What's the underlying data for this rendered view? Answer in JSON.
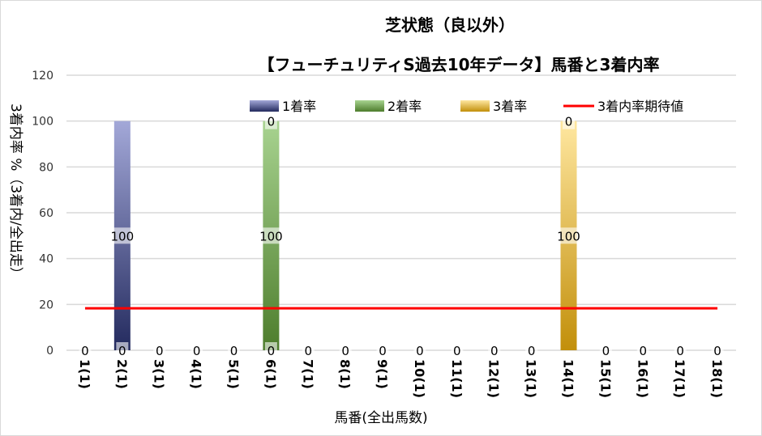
{
  "chart_data": {
    "type": "bar",
    "stacked": true,
    "title": "芝状態（良以外）",
    "subtitle": "【フューチュリティS過去10年データ】馬番と3着内率",
    "xlabel": "馬番(全出馬数)",
    "ylabel": "3着内率 %（3着内/全出走）",
    "ylim": [
      0,
      120
    ],
    "yticks": [
      0,
      20,
      40,
      60,
      80,
      100,
      120
    ],
    "grid": true,
    "legend_position": "top",
    "categories": [
      "1(1)",
      "2(1)",
      "3(1)",
      "4(1)",
      "5(1)",
      "6(1)",
      "7(1)",
      "8(1)",
      "9(1)",
      "10(1)",
      "11(1)",
      "12(1)",
      "13(1)",
      "14(1)",
      "15(1)",
      "16(1)",
      "17(1)",
      "18(1)"
    ],
    "series": [
      {
        "name": "1着率",
        "color": "#2e3a7a",
        "values": [
          0,
          100,
          0,
          0,
          0,
          0,
          0,
          0,
          0,
          0,
          0,
          0,
          0,
          0,
          0,
          0,
          0,
          0
        ]
      },
      {
        "name": "2着率",
        "color": "#5a8a3a",
        "values": [
          0,
          0,
          0,
          0,
          0,
          100,
          0,
          0,
          0,
          0,
          0,
          0,
          0,
          0,
          0,
          0,
          0,
          0
        ]
      },
      {
        "name": "3着率",
        "color": "#c8960f",
        "values": [
          0,
          0,
          0,
          0,
          0,
          0,
          0,
          0,
          0,
          0,
          0,
          0,
          0,
          100,
          0,
          0,
          0,
          0
        ]
      }
    ],
    "line": {
      "name": "3着内率期待値",
      "color": "#ff0000",
      "value": 18.3
    },
    "data_labels": {
      "bottom": [
        "0",
        "0",
        "0",
        "0",
        "0",
        "0",
        "0",
        "0",
        "0",
        "0",
        "0",
        "0",
        "0",
        "",
        "0",
        "0",
        "0",
        "0"
      ],
      "middle": [
        "",
        "100",
        "",
        "",
        "",
        "100",
        "",
        "",
        "",
        "",
        "",
        "",
        "",
        "100",
        "",
        "",
        "",
        ""
      ],
      "top": [
        "",
        "",
        "",
        "",
        "",
        "0",
        "",
        "",
        "",
        "",
        "",
        "",
        "",
        "0",
        "",
        "",
        "",
        ""
      ]
    }
  }
}
